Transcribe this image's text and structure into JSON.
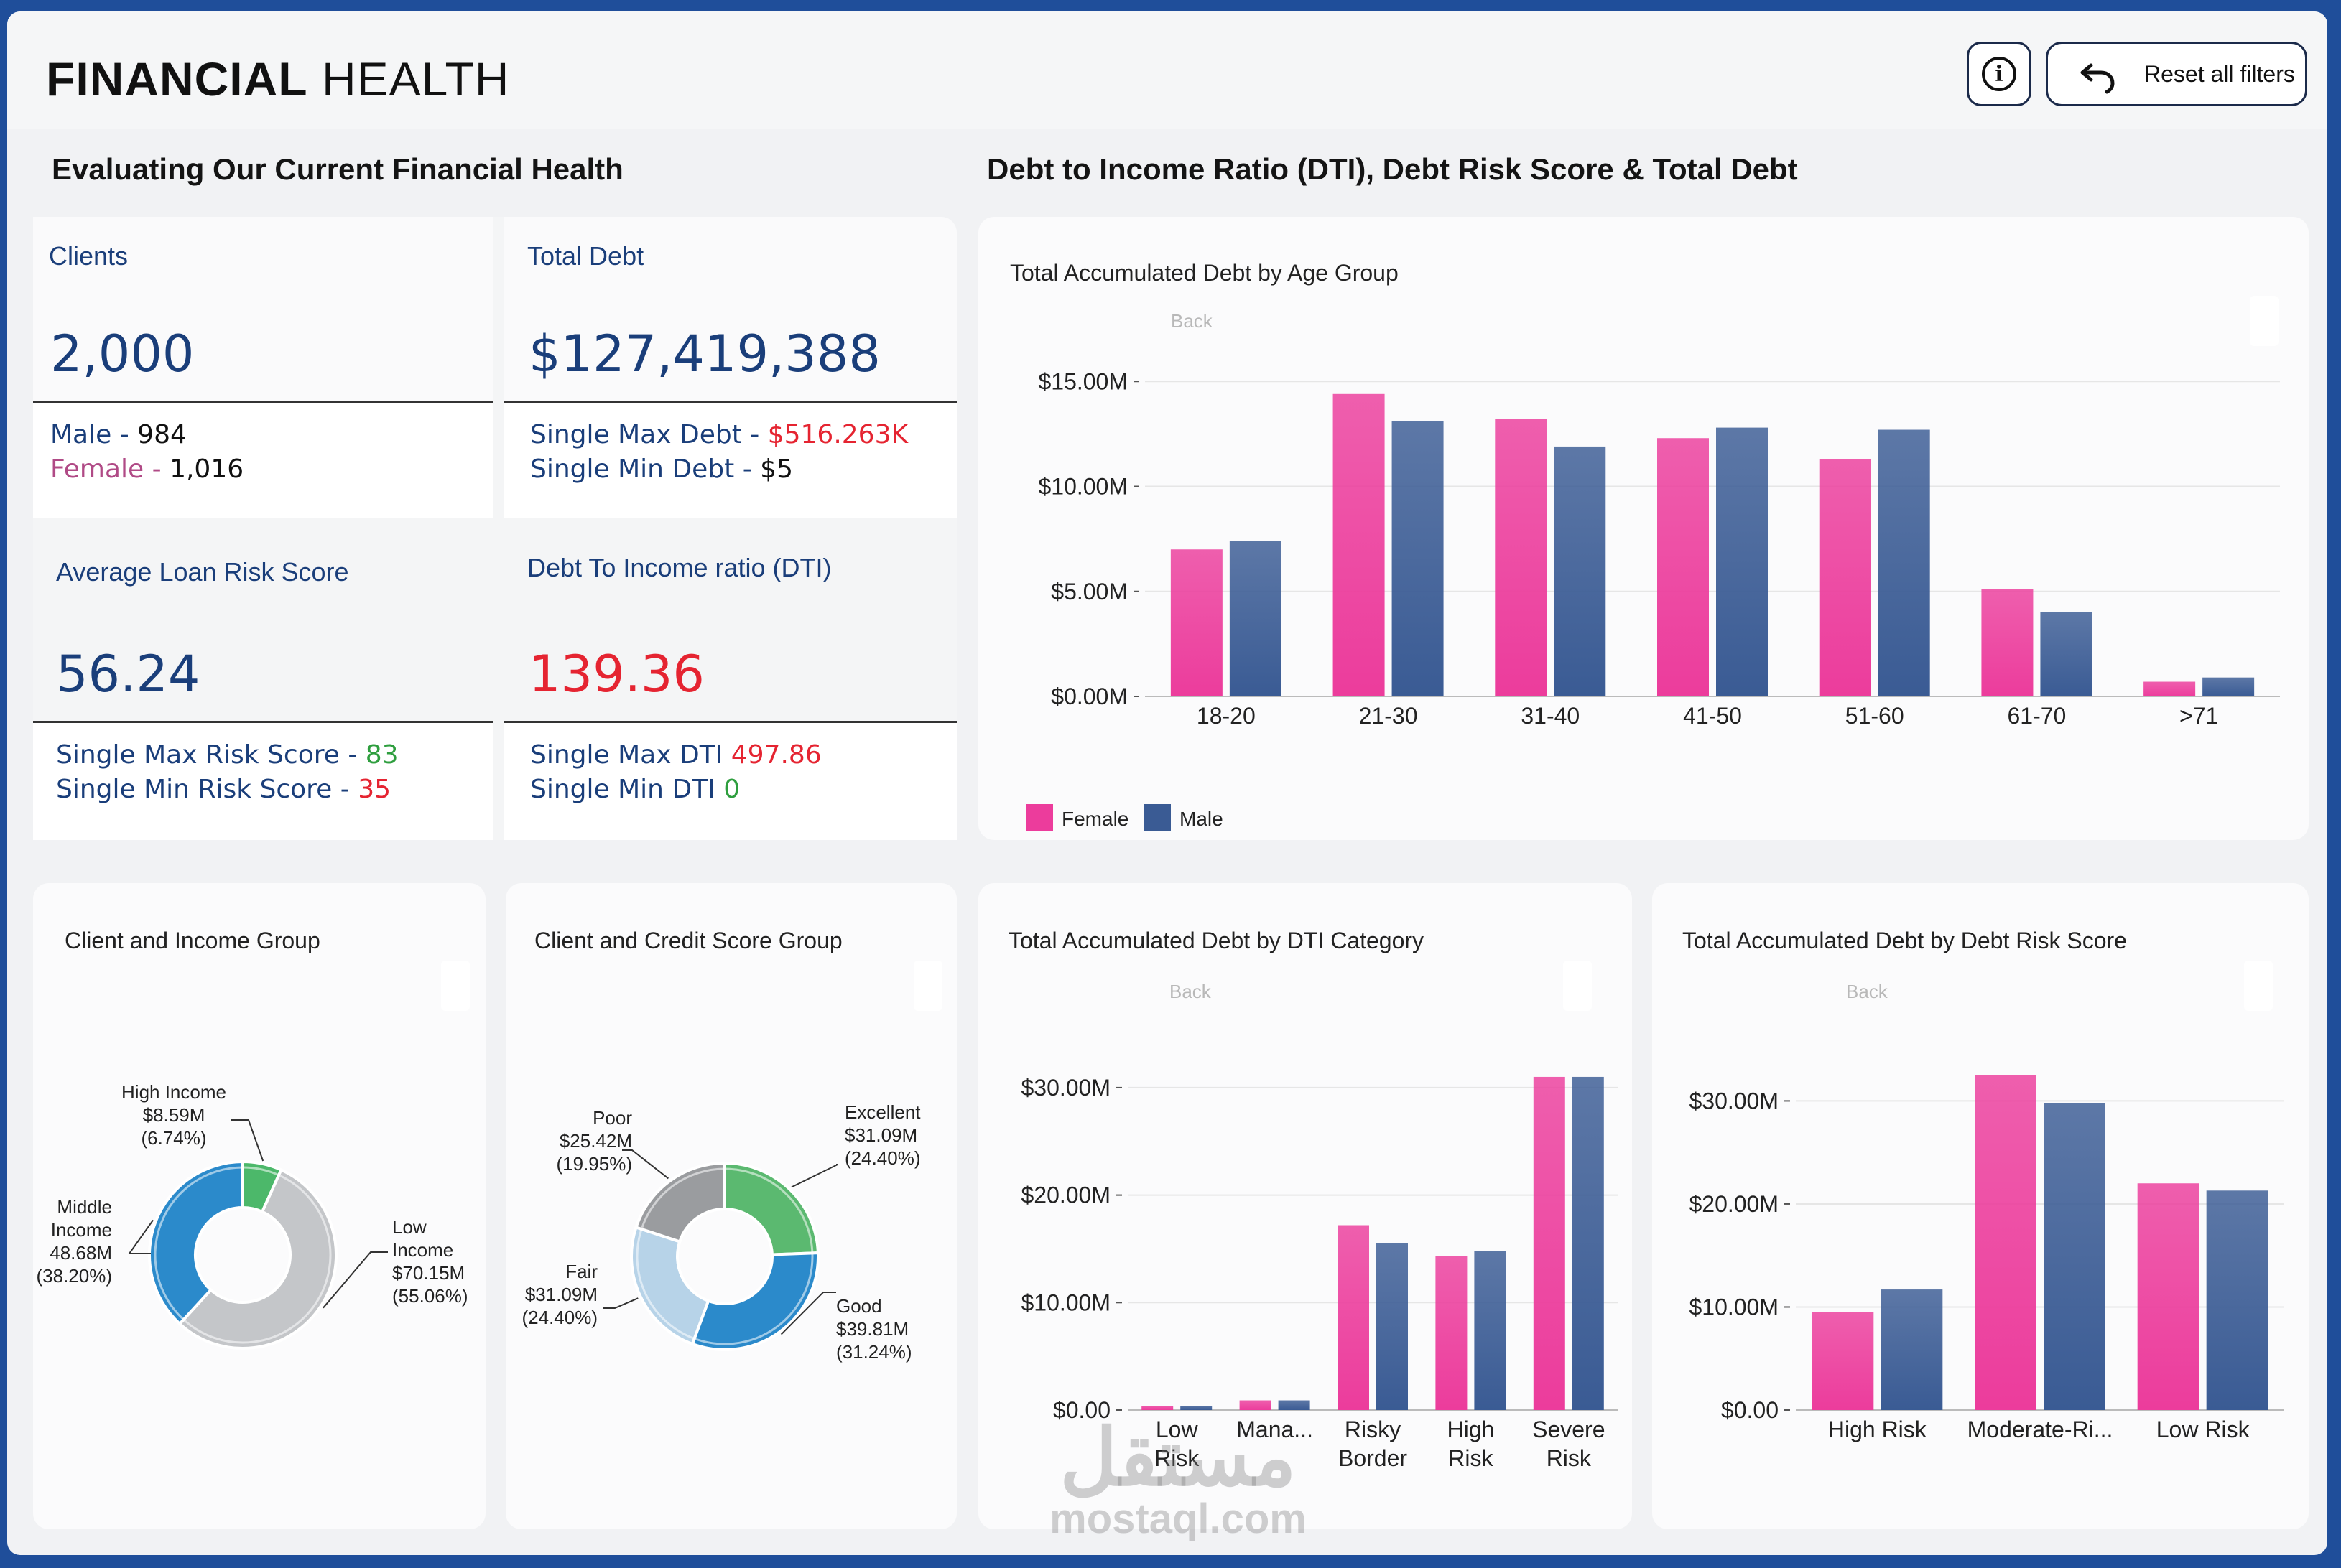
{
  "header": {
    "brand_bold": "FINANCIAL",
    "brand_light": "HEALTH",
    "info_label": "i",
    "reset_label": "Reset all filters"
  },
  "sections": {
    "left_title": "Evaluating Our Current Financial Health",
    "right_title": "Debt to Income Ratio (DTI), Debt Risk Score & Total Debt"
  },
  "kpis": {
    "clients": {
      "label": "Clients",
      "value": "2,000",
      "male_label": "Male -",
      "male_value": "984",
      "female_label": "Female -",
      "female_value": "1,016"
    },
    "total_debt": {
      "label": "Total Debt",
      "value": "$127,419,388",
      "max_label": "Single Max Debt -",
      "max_value": "$516.263K",
      "min_label": "Single Min Debt -",
      "min_value": "$5"
    },
    "risk": {
      "label": "Average Loan Risk Score",
      "value": "56.24",
      "max_label": "Single Max Risk Score -",
      "max_value": "83",
      "min_label": "Single Min Risk Score -",
      "min_value": "35"
    },
    "dti": {
      "label": "Debt To Income ratio (DTI)",
      "value": "139.36",
      "max_label": "Single Max DTI",
      "max_value": "497.86",
      "min_label": "Single Min DTI",
      "min_value": "0"
    }
  },
  "colors": {
    "female": "#ec3c9c",
    "male": "#3a5b94",
    "accent": "#1a3e7a",
    "red": "#e52431",
    "green": "#2e9e3e"
  },
  "chart_data": [
    {
      "id": "age",
      "type": "bar",
      "title": "Total Accumulated Debt by Age Group",
      "back_label": "Back",
      "categories": [
        "18-20",
        "21-30",
        "31-40",
        "41-50",
        "51-60",
        "61-70",
        ">71"
      ],
      "series": [
        {
          "name": "Female",
          "values": [
            7.0,
            14.4,
            13.2,
            12.3,
            11.3,
            5.1,
            0.7
          ]
        },
        {
          "name": "Male",
          "values": [
            7.4,
            13.1,
            11.9,
            12.8,
            12.7,
            4.0,
            0.9
          ]
        }
      ],
      "yticks": [
        "$0.00M",
        "$5.00M",
        "$10.00M",
        "$15.00M"
      ],
      "ylim": [
        0,
        16
      ],
      "ytick_values": [
        0,
        5,
        10,
        15
      ],
      "legend": "bottom-left",
      "grid": true
    },
    {
      "id": "dti",
      "type": "bar",
      "title": "Total Accumulated Debt by DTI Category",
      "back_label": "Back",
      "categories": [
        "Low Risk",
        "Mana...",
        "Risky Border",
        "High Risk",
        "Severe Risk"
      ],
      "series": [
        {
          "name": "Female",
          "values": [
            0.4,
            0.9,
            17.2,
            14.3,
            31.0
          ]
        },
        {
          "name": "Male",
          "values": [
            0.4,
            0.9,
            15.5,
            14.8,
            31.0
          ]
        }
      ],
      "yticks": [
        "$0.00",
        "$10.00M",
        "$20.00M",
        "$30.00M"
      ],
      "ylim": [
        0,
        33
      ],
      "ytick_values": [
        0,
        10,
        20,
        30
      ],
      "grid": true
    },
    {
      "id": "risk",
      "type": "bar",
      "title": "Total Accumulated Debt by Debt Risk Score",
      "back_label": "Back",
      "categories": [
        "High Risk",
        "Moderate-Ri...",
        "Low Risk"
      ],
      "series": [
        {
          "name": "Female",
          "values": [
            9.5,
            32.5,
            22.0
          ]
        },
        {
          "name": "Male",
          "values": [
            11.7,
            29.8,
            21.3
          ]
        }
      ],
      "yticks": [
        "$0.00",
        "$10.00M",
        "$20.00M",
        "$30.00M"
      ],
      "ylim": [
        0,
        34
      ],
      "ytick_values": [
        0,
        10,
        20,
        30
      ],
      "grid": true
    },
    {
      "id": "income",
      "type": "pie",
      "title": "Client and Income Group",
      "slices": [
        {
          "name": "High Income",
          "value": "$8.59M",
          "pct": "(6.74%)",
          "share": 6.74,
          "color": "#4cb86a"
        },
        {
          "name": "Low Income",
          "value": "$70.15M",
          "pct": "(55.06%)",
          "share": 55.06,
          "color": "#c4c6c9"
        },
        {
          "name": "Middle Income",
          "value": "48.68M",
          "pct": "(38.20%)",
          "share": 38.2,
          "color": "#2b8acb"
        }
      ]
    },
    {
      "id": "credit",
      "type": "pie",
      "title": "Client and Credit Score Group",
      "slices": [
        {
          "name": "Excellent",
          "value": "$31.09M",
          "pct": "(24.40%)",
          "share": 24.4,
          "color": "#5bb970"
        },
        {
          "name": "Good",
          "value": "$39.81M",
          "pct": "(31.24%)",
          "share": 31.24,
          "color": "#2b8acb"
        },
        {
          "name": "Fair",
          "value": "$31.09M",
          "pct": "(24.40%)",
          "share": 24.4,
          "color": "#b7d3e8"
        },
        {
          "name": "Poor",
          "value": "$25.42M",
          "pct": "(19.95%)",
          "share": 19.95,
          "color": "#9a9c9f"
        }
      ]
    }
  ],
  "watermark": {
    "arabic": "مستقل",
    "latin": "mostaql.com"
  }
}
